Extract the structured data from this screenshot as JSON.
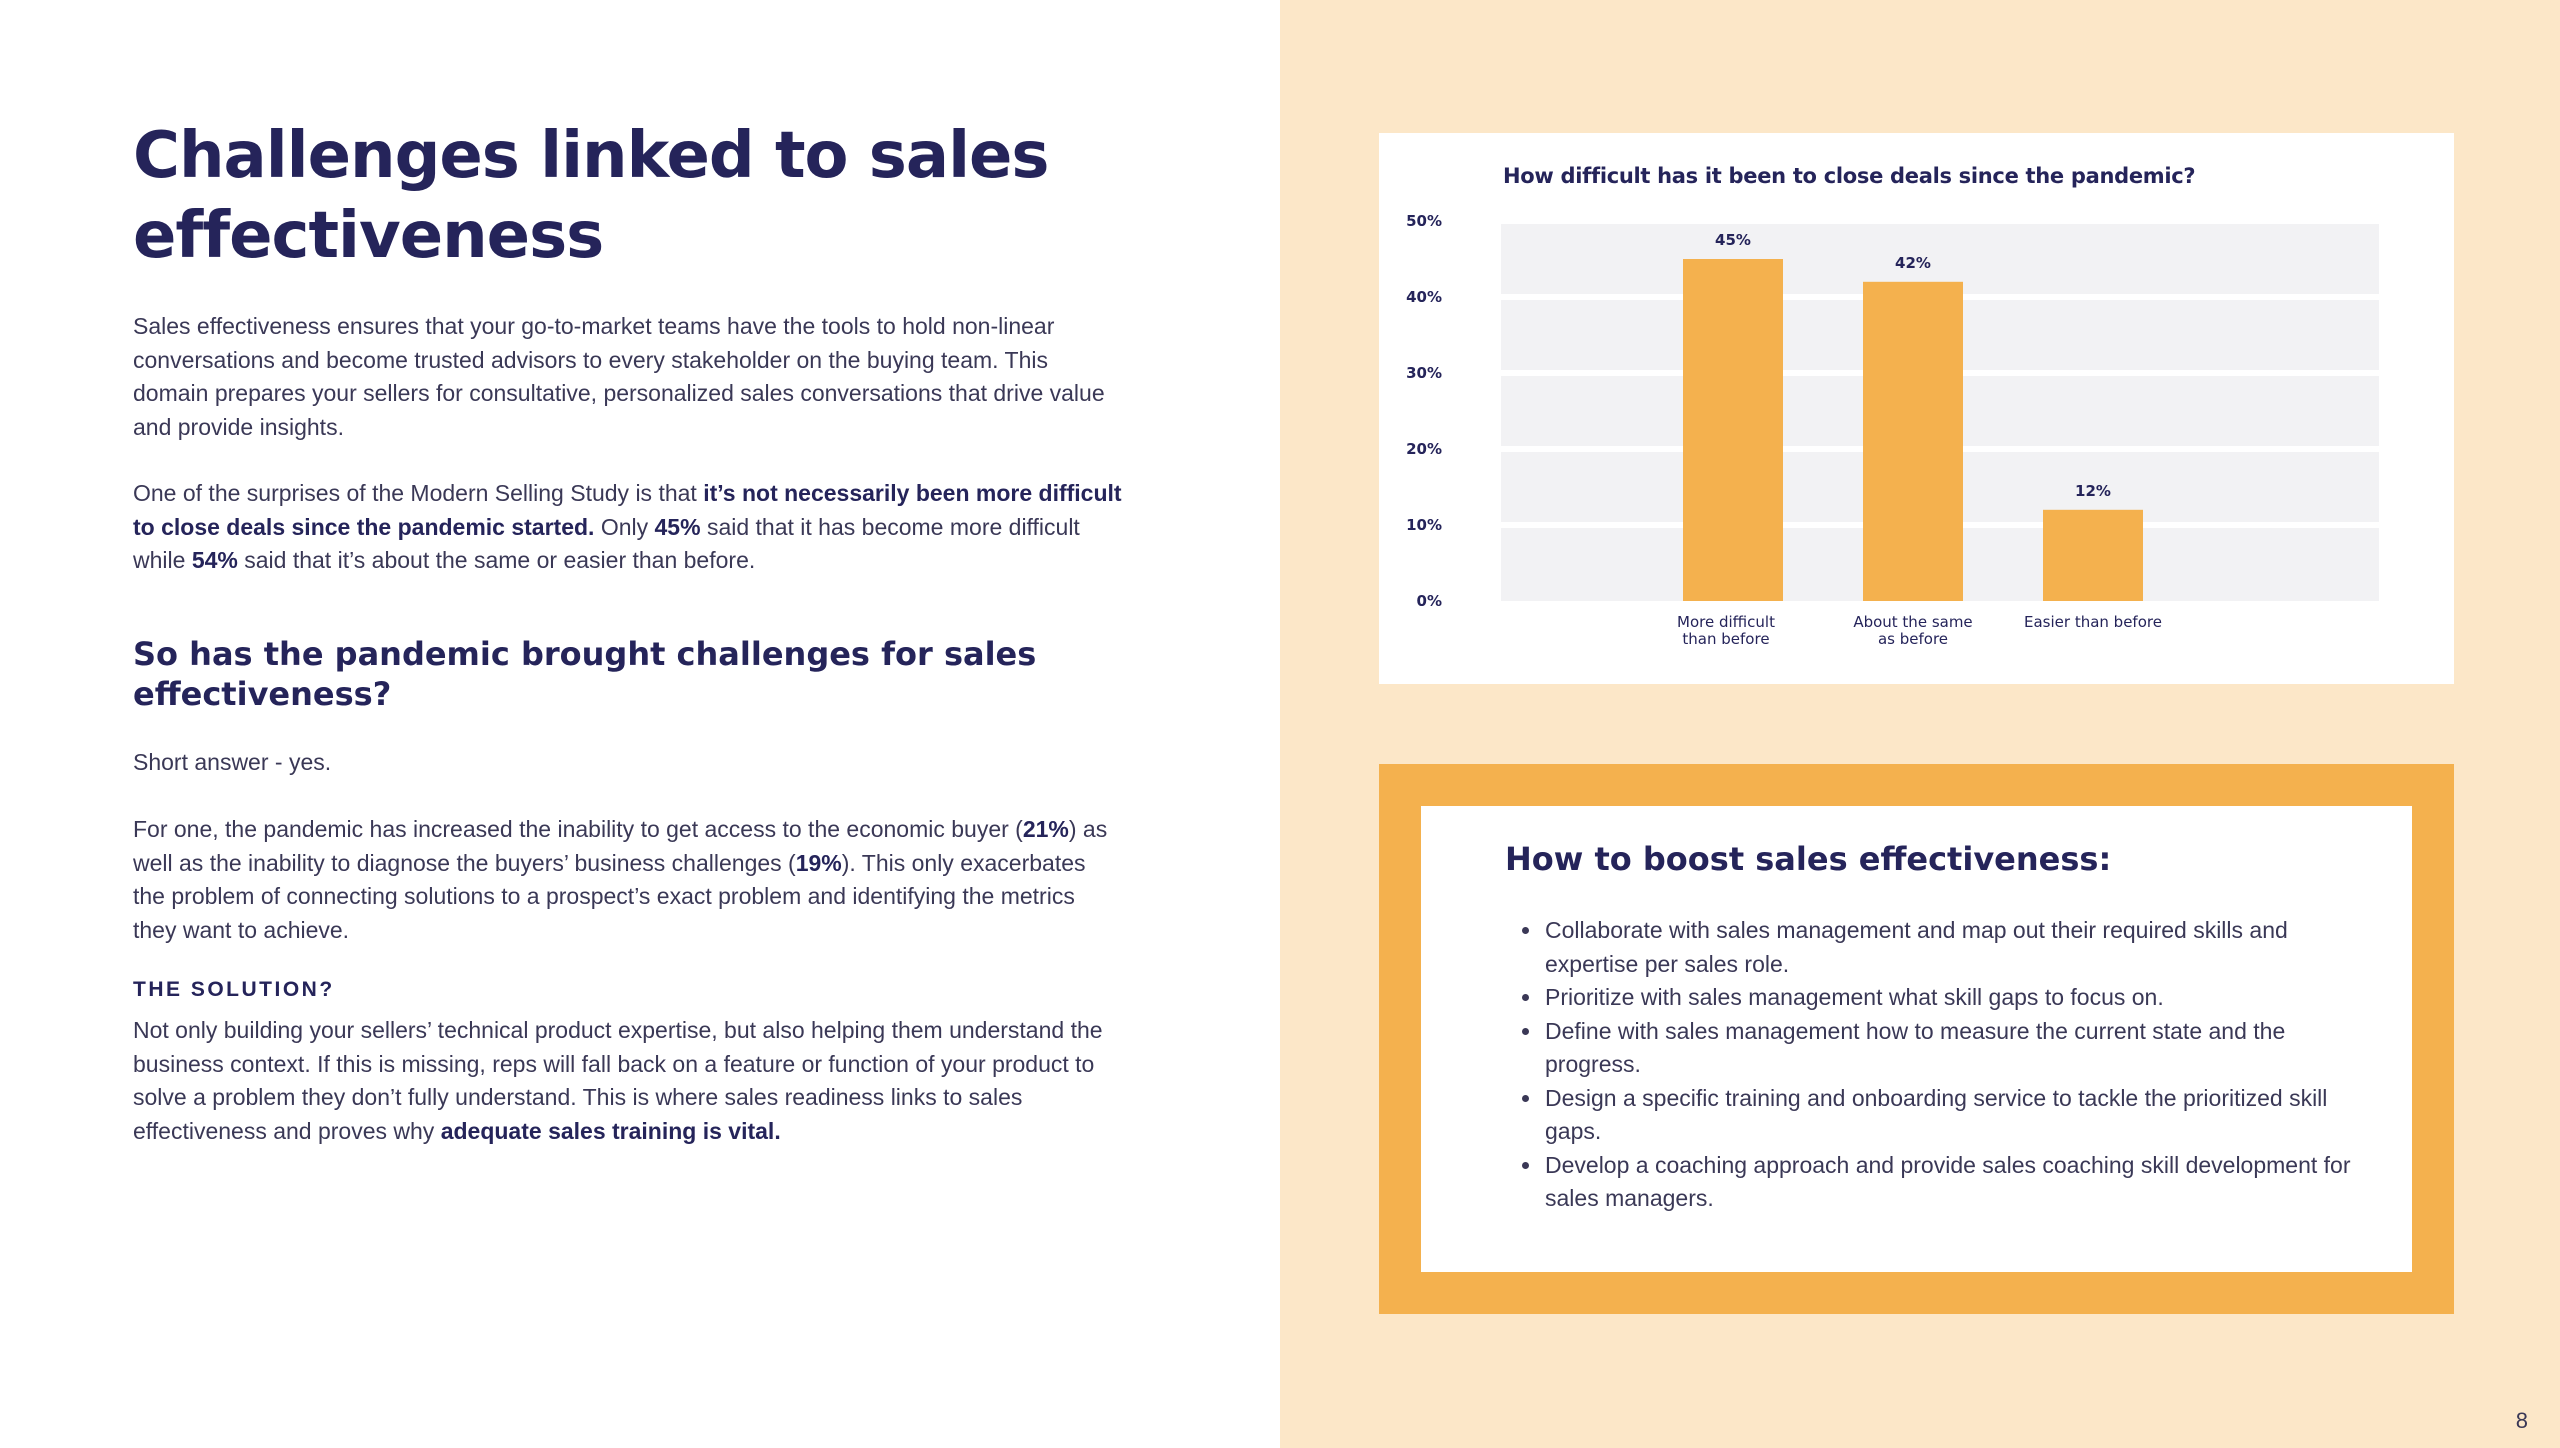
{
  "left": {
    "title": "Challenges linked to sales effectiveness",
    "intro": "Sales effectiveness ensures that your go-to-market teams have the tools to hold non-linear conversations and become trusted advisors to every stakeholder on the buying team. This domain prepares your sellers for consultative, personalized sales conversations that drive value and provide insights.",
    "p2": {
      "t1": "One of the surprises of the Modern Selling Study is that ",
      "b1": "it’s not necessarily been more difficult to close deals since the pandemic started.",
      "t2": " Only ",
      "b2": "45%",
      "t3": " said that it has become more difficult while ",
      "b3": "54%",
      "t4": " said that it’s about the same or easier than before."
    },
    "subheading": "So has the pandemic brought challenges for sales effectiveness?",
    "short_answer": "Short answer - yes.",
    "p3": {
      "t1": "For one, the pandemic has increased the inability to get access to the economic buyer (",
      "b1": "21%",
      "t2": ") as well as the inability to diagnose the buyers’ business challenges (",
      "b2": "19%",
      "t3": "). This only exacerbates the problem of connecting solutions to a prospect’s exact problem and identifying the metrics they want to achieve."
    },
    "solution_label": "THE SOLUTION?",
    "p4": {
      "t1": "Not only building your sellers’ technical product expertise, but also helping them understand the business context. If this is missing, reps will fall back on a feature or function of your product to solve a problem they don’t fully understand. This is where sales readiness links to sales effectiveness and proves why ",
      "b1": "adequate sales training is vital."
    }
  },
  "chart_data": {
    "type": "bar",
    "title": "How difficult has it been to close deals since the pandemic?",
    "categories": [
      [
        "More difficult",
        "than before"
      ],
      [
        "About the same",
        "as before"
      ],
      [
        "Easier than before"
      ]
    ],
    "values": [
      45,
      42,
      12
    ],
    "value_labels": [
      "45%",
      "42%",
      "12%"
    ],
    "yticks": [
      "0%",
      "10%",
      "20%",
      "30%",
      "40%",
      "50%"
    ],
    "ylim": [
      0,
      50
    ],
    "grid": true,
    "bar_color": "#f4b14e",
    "plot_bg": "#f2f2f4"
  },
  "tips": {
    "title": "How to boost sales effectiveness:",
    "items": [
      "Collaborate with sales management and map out their required skills and expertise per sales role.",
      "Prioritize with sales management what skill gaps to focus on.",
      "Define with sales management how to measure the current state and the progress.",
      "Design a specific training and onboarding service to tackle the prioritized skill gaps.",
      "Develop a coaching approach and provide sales coaching skill development for sales managers."
    ]
  },
  "page_number": "8",
  "colors": {
    "navy": "#25245a",
    "orange": "#f4b14e",
    "cream": "#fce7c8"
  }
}
